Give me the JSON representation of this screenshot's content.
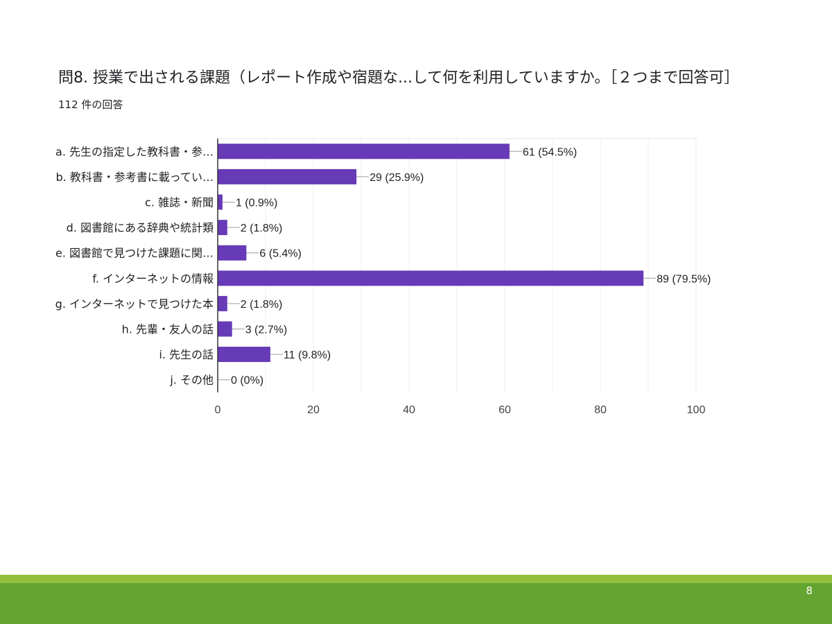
{
  "slide": {
    "title": "問8. 授業で出される課題（レポート作成や宿題な...して何を利用していますか。［２つまで回答可］",
    "subtitle": "112 件の回答",
    "page_number": "8",
    "colors": {
      "bar": "#673ab7",
      "footer_light": "#92c03c",
      "footer_dark": "#64a531"
    }
  },
  "chart_data": {
    "type": "bar",
    "orientation": "horizontal",
    "categories": [
      "a. 先生の指定した教科書・参…",
      "b. 教科書・参考書に載ってい…",
      "c. 雑誌・新聞",
      "d. 図書館にある辞典や統計類",
      "e. 図書館で見つけた課題に関…",
      "f. インターネットの情報",
      "g. インターネットで見つけた本",
      "h. 先輩・友人の話",
      "i. 先生の話",
      "j. その他"
    ],
    "values": [
      61,
      29,
      1,
      2,
      6,
      89,
      2,
      3,
      11,
      0
    ],
    "data_labels": [
      "61 (54.5%)",
      "29 (25.9%)",
      "1 (0.9%)",
      "2 (1.8%)",
      "6 (5.4%)",
      "89 (79.5%)",
      "2 (1.8%)",
      "3 (2.7%)",
      "11 (9.8%)",
      "0 (0%)"
    ],
    "xlim": [
      0,
      100
    ],
    "xticks": [
      0,
      20,
      40,
      60,
      80,
      100
    ],
    "grid": true,
    "legend": "none"
  }
}
